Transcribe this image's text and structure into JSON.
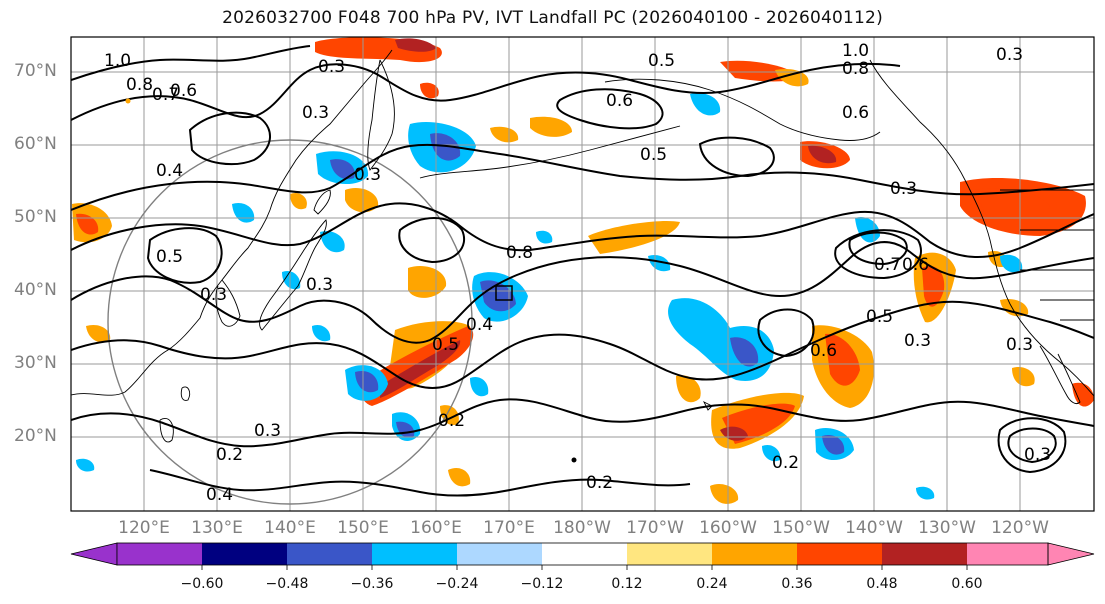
{
  "title": "2026032700 F048 700 hPa PV, IVT Landfall PC (2026040100 - 2026040112)",
  "lat_labels": [
    "70°N",
    "60°N",
    "50°N",
    "40°N",
    "30°N",
    "20°N"
  ],
  "lon_labels": [
    "120°E",
    "130°E",
    "140°E",
    "150°E",
    "160°E",
    "170°E",
    "180°W",
    "170°W",
    "160°W",
    "150°W",
    "140°W",
    "130°W",
    "120°W"
  ],
  "colorbar": {
    "ticks": [
      "−0.60",
      "−0.48",
      "−0.36",
      "−0.24",
      "−0.12",
      "0.12",
      "0.24",
      "0.36",
      "0.48",
      "0.60"
    ],
    "colors": [
      "#9932CC",
      "#000080",
      "#3A56C8",
      "#00BFFF",
      "#ADD8FF",
      "#FFFFFF",
      "#FFE680",
      "#FFA500",
      "#FF4500",
      "#B22222",
      "#FF85B3"
    ]
  },
  "contour_labels": [
    "1.0",
    "0.3",
    "0.5",
    "1.0",
    "0.8",
    "0.3",
    "0.7",
    "0.6",
    "0.3",
    "0.4",
    "0.5",
    "0.3",
    "0.3",
    "0.5",
    "0.8",
    "0.4",
    "0.5",
    "0.6",
    "0.2",
    "0.2",
    "0.3",
    "0.2",
    "0.4",
    "0.2",
    "0.5",
    "0.6",
    "0.3",
    "0.7",
    "0.3",
    "0.6",
    "0.3",
    "0.8",
    "0.6",
    "0.3",
    "0.3"
  ],
  "colors": {
    "grid": "#9a9a9a",
    "contour": "#000000",
    "coast": "#000000",
    "circle": "#808080"
  }
}
